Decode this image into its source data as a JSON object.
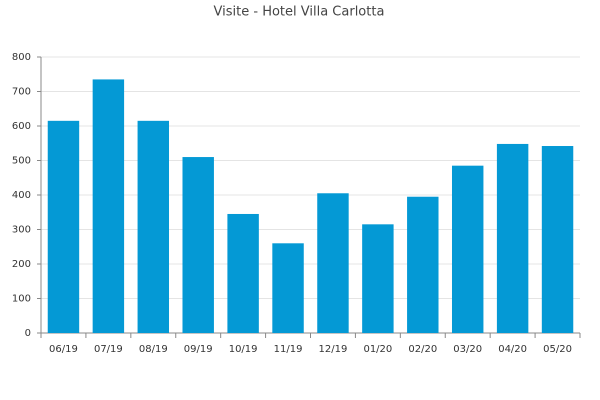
{
  "chart_data": {
    "type": "bar",
    "title": "Visite - Hotel Villa Carlotta",
    "categories": [
      "06/19",
      "07/19",
      "08/19",
      "09/19",
      "10/19",
      "11/19",
      "12/19",
      "01/20",
      "02/20",
      "03/20",
      "04/20",
      "05/20"
    ],
    "values": [
      615,
      735,
      615,
      510,
      345,
      260,
      405,
      315,
      395,
      485,
      548,
      542
    ],
    "color": "#0499d5",
    "ylim": [
      0,
      800
    ],
    "yticks": [
      0,
      100,
      200,
      300,
      400,
      500,
      600,
      700,
      800
    ],
    "grid": true
  }
}
